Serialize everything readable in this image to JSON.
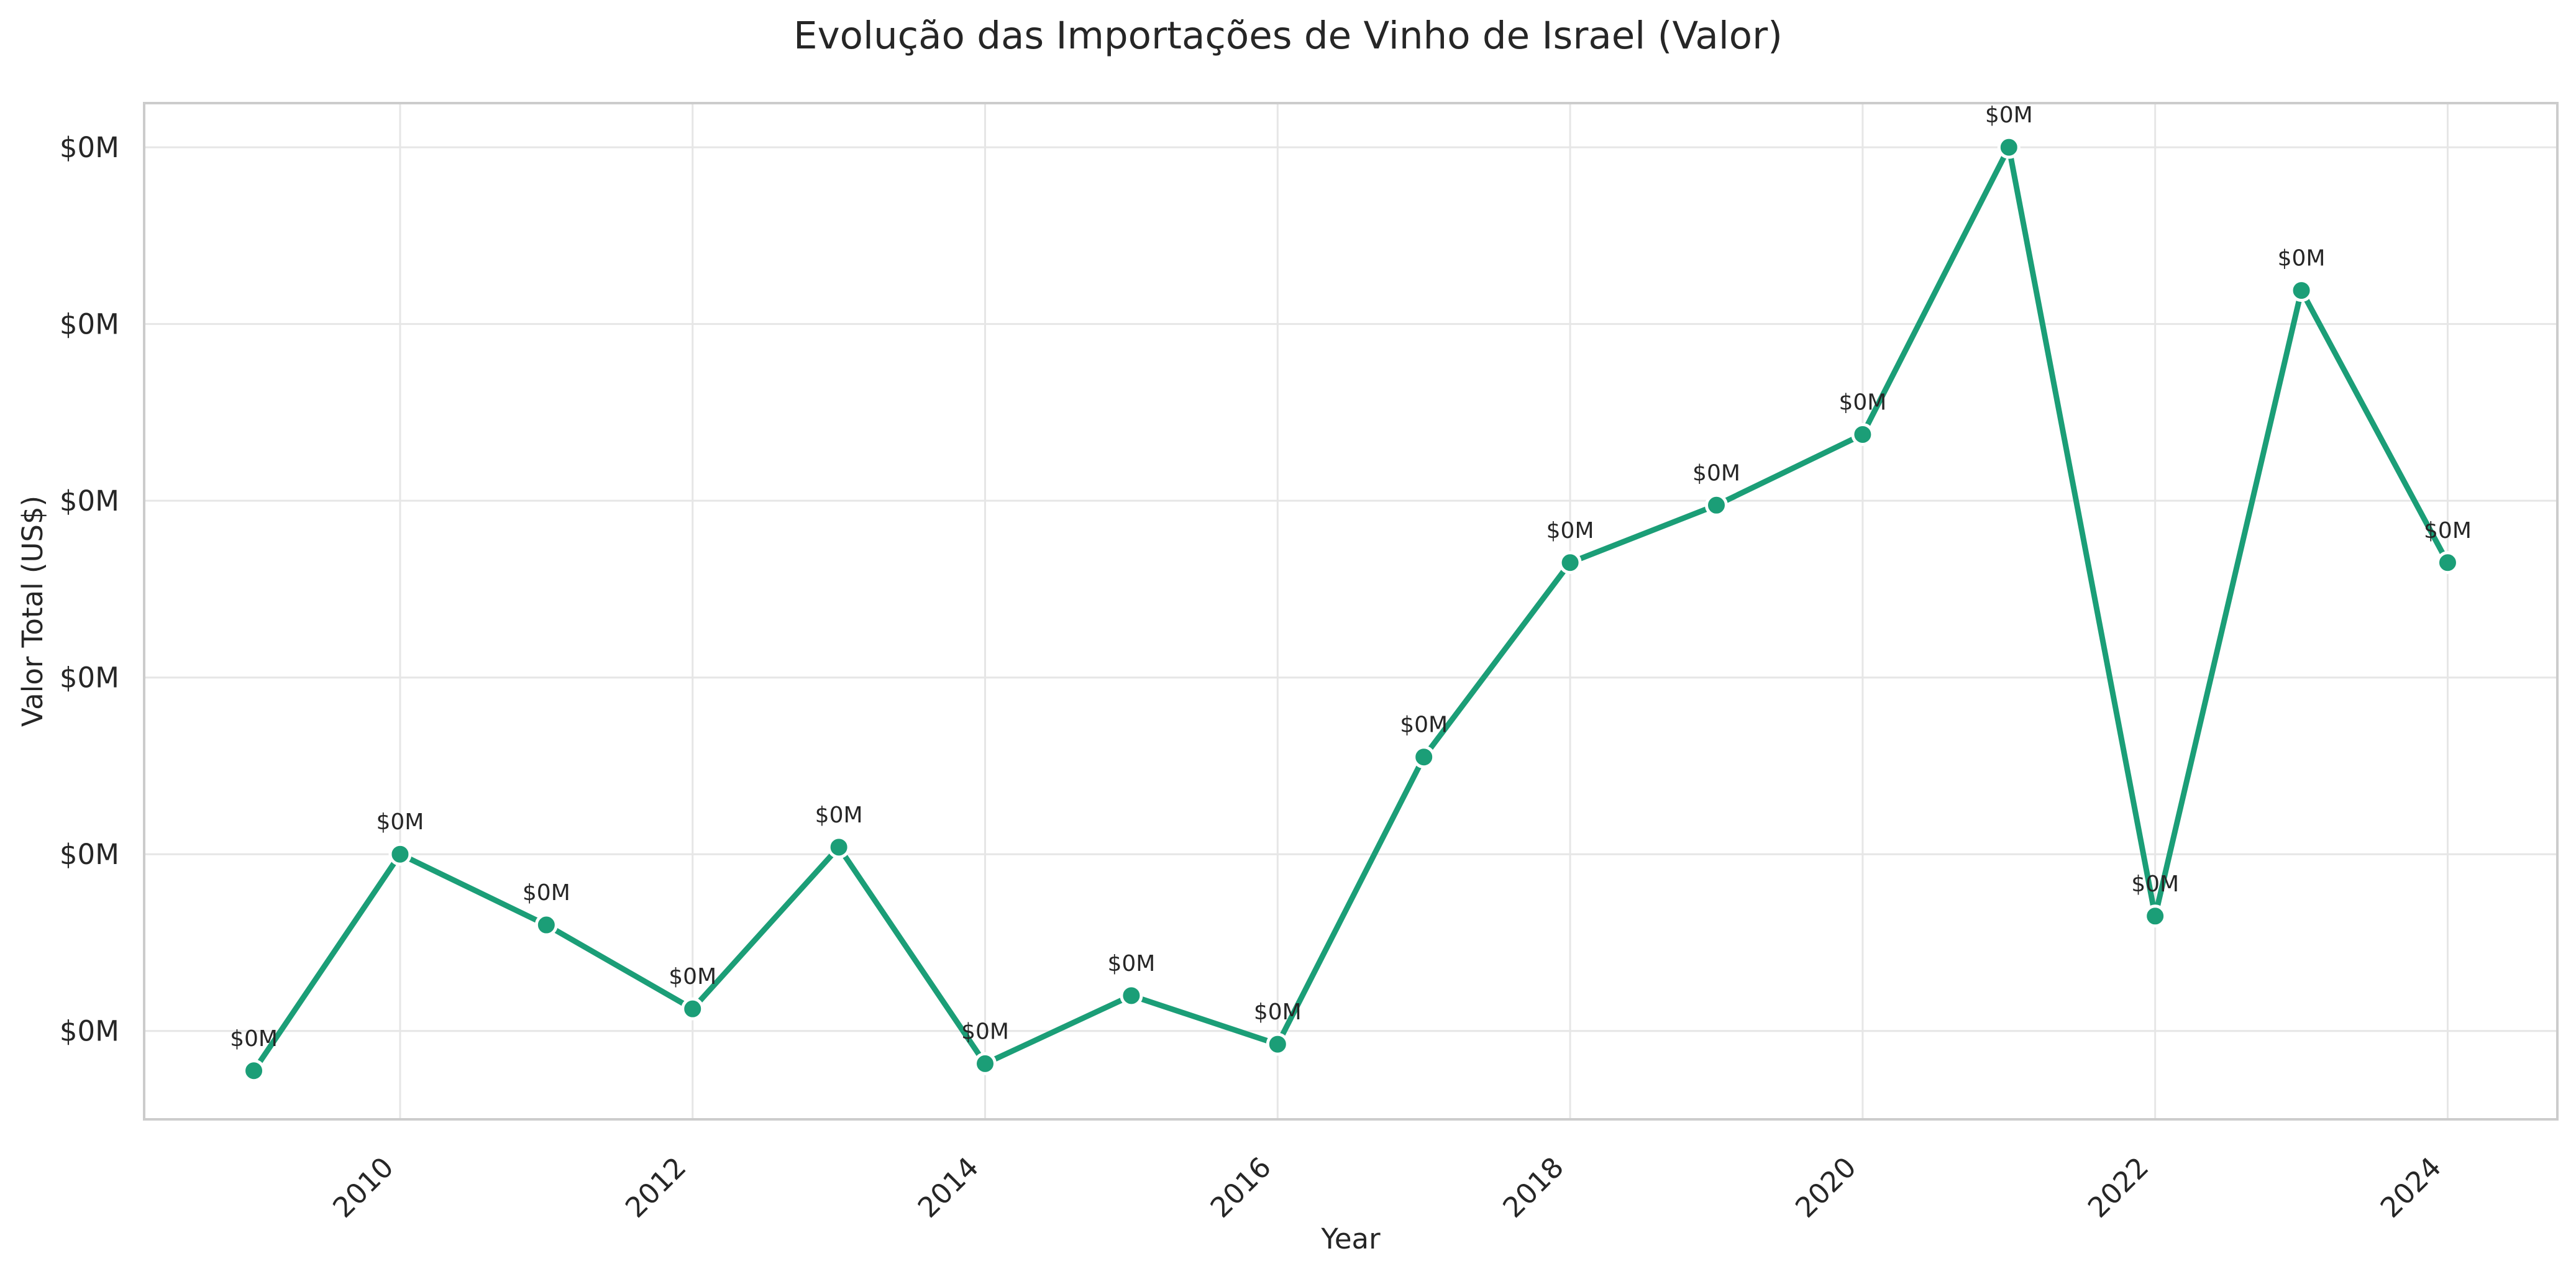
{
  "chart_data": {
    "type": "line",
    "title": "Evolução das Importações de Vinho de Israel (Valor)",
    "xlabel": "Year",
    "ylabel": "Valor Total (US$)",
    "xlim": [
      2008.25,
      2024.75
    ],
    "ylim": [
      0.0,
      11.5
    ],
    "x_ticks": [
      2010,
      2012,
      2014,
      2016,
      2018,
      2020,
      2022,
      2024
    ],
    "y_ticks": [
      1,
      3,
      5,
      7,
      9,
      11
    ],
    "y_tick_labels": [
      "$0M",
      "$0M",
      "$0M",
      "$0M",
      "$0M",
      "$0M"
    ],
    "grid": true,
    "series": [
      {
        "color": "#1b9e77",
        "x": [
          2009,
          2010,
          2011,
          2012,
          2013,
          2014,
          2015,
          2016,
          2017,
          2018,
          2019,
          2020,
          2021,
          2022,
          2023,
          2024
        ],
        "values": [
          0.55,
          3.0,
          2.2,
          1.25,
          3.08,
          0.63,
          1.4,
          0.85,
          4.1,
          6.3,
          6.95,
          7.75,
          11.0,
          2.3,
          9.38,
          6.3
        ],
        "data_labels": [
          "$0M",
          "$0M",
          "$0M",
          "$0M",
          "$0M",
          "$0M",
          "$0M",
          "$0M",
          "$0M",
          "$0M",
          "$0M",
          "$0M",
          "$0M",
          "$0M",
          "$0M",
          "$0M"
        ]
      }
    ]
  }
}
